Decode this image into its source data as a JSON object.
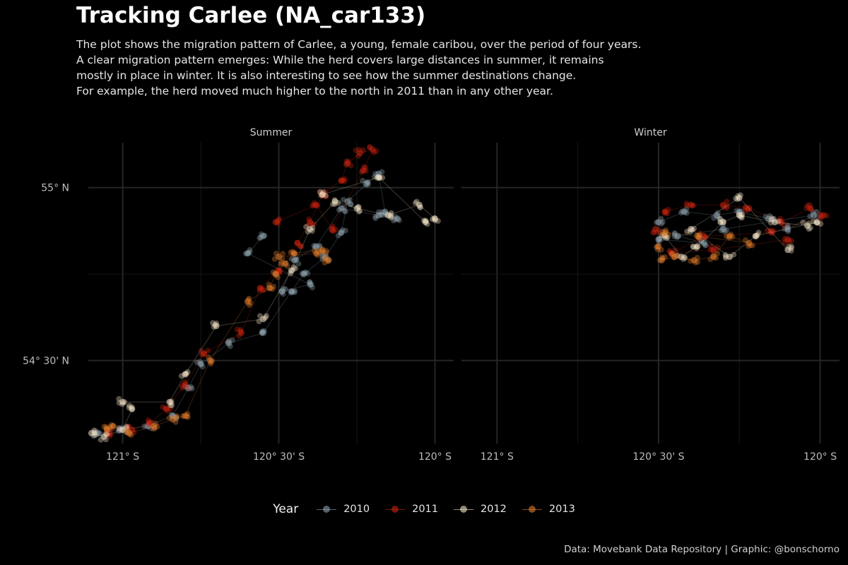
{
  "chart_data": {
    "type": "scatter",
    "title": "Tracking Carlee (NA_car133)",
    "subtitle": [
      "The plot shows the migration pattern of Carlee, a young, female caribou, over the period of four years.",
      "A clear migration pattern emerges: While the herd covers large distances in summer, it remains",
      "mostly in place in winter. It is also interesting to see how the summer destinations change.",
      "For example, the herd moved much higher to the north in 2011 than in any other year."
    ],
    "caption": "Data: Movebank Data Repository | Graphic: @bonschorno",
    "legend": {
      "title": "Year",
      "position": "bottom"
    },
    "x_axis": {
      "range": [
        -121.11,
        -119.94
      ],
      "ticks": [
        -121,
        -120.5,
        -120
      ],
      "tick_labels": [
        "121° S",
        "120° 30' S",
        "120° S"
      ]
    },
    "y_axis": {
      "range": [
        54.26,
        55.13
      ],
      "ticks": [
        54.5,
        55
      ],
      "tick_labels": [
        "54° 30' N",
        "55° N"
      ]
    },
    "grid": true,
    "series": [
      {
        "name": "2010",
        "color": "#8ea2b0"
      },
      {
        "name": "2011",
        "color": "#c8230f"
      },
      {
        "name": "2012",
        "color": "#f5e6c8"
      },
      {
        "name": "2013",
        "color": "#e07b2c"
      }
    ],
    "panels": [
      {
        "label": "Summer",
        "tracks": [
          {
            "year": "2010",
            "points": [
              [
                -121.08,
                54.29
              ],
              [
                -121.01,
                54.3
              ],
              [
                -120.92,
                54.31
              ],
              [
                -120.84,
                54.34
              ],
              [
                -120.79,
                54.42
              ],
              [
                -120.75,
                54.49
              ],
              [
                -120.66,
                54.55
              ],
              [
                -120.55,
                54.58
              ],
              [
                -120.46,
                54.7
              ],
              [
                -120.42,
                54.75
              ],
              [
                -120.35,
                54.8
              ],
              [
                -120.3,
                54.87
              ],
              [
                -120.28,
                54.96
              ],
              [
                -120.22,
                55.01
              ],
              [
                -120.18,
                55.04
              ],
              [
                -120.16,
                54.93
              ],
              [
                -120.12,
                54.91
              ],
              [
                -120.18,
                54.92
              ],
              [
                -120.3,
                54.94
              ],
              [
                -120.38,
                54.83
              ],
              [
                -120.45,
                54.79
              ],
              [
                -120.49,
                54.7
              ],
              [
                -120.4,
                54.72
              ],
              [
                -120.6,
                54.81
              ],
              [
                -120.55,
                54.86
              ]
            ]
          },
          {
            "year": "2011",
            "points": [
              [
                -121.05,
                54.29
              ],
              [
                -120.97,
                54.3
              ],
              [
                -120.91,
                54.32
              ],
              [
                -120.86,
                54.36
              ],
              [
                -120.8,
                54.43
              ],
              [
                -120.74,
                54.52
              ],
              [
                -120.62,
                54.58
              ],
              [
                -120.56,
                54.71
              ],
              [
                -120.5,
                54.76
              ],
              [
                -120.44,
                54.84
              ],
              [
                -120.4,
                54.9
              ],
              [
                -120.36,
                54.98
              ],
              [
                -120.3,
                55.02
              ],
              [
                -120.28,
                55.07
              ],
              [
                -120.24,
                55.1
              ],
              [
                -120.2,
                55.11
              ],
              [
                -120.23,
                55.05
              ],
              [
                -120.33,
                54.88
              ],
              [
                -120.38,
                54.95
              ],
              [
                -120.51,
                54.9
              ]
            ]
          },
          {
            "year": "2012",
            "points": [
              [
                -121.1,
                54.29
              ],
              [
                -121.06,
                54.28
              ],
              [
                -121.0,
                54.3
              ],
              [
                -120.97,
                54.36
              ],
              [
                -121.0,
                54.38
              ],
              [
                -120.85,
                54.38
              ],
              [
                -120.8,
                54.46
              ],
              [
                -120.7,
                54.6
              ],
              [
                -120.55,
                54.62
              ],
              [
                -120.46,
                54.76
              ],
              [
                -120.4,
                54.88
              ],
              [
                -120.32,
                54.96
              ],
              [
                -120.25,
                54.94
              ],
              [
                -120.15,
                54.92
              ],
              [
                -120.05,
                54.95
              ],
              [
                -120.0,
                54.91
              ],
              [
                -120.03,
                54.9
              ],
              [
                -120.18,
                55.03
              ],
              [
                -120.36,
                54.98
              ]
            ]
          },
          {
            "year": "2013",
            "points": [
              [
                -121.05,
                54.3
              ],
              [
                -121.03,
                54.31
              ],
              [
                -120.98,
                54.29
              ],
              [
                -120.9,
                54.31
              ],
              [
                -120.84,
                54.33
              ],
              [
                -120.8,
                54.34
              ],
              [
                -120.72,
                54.5
              ],
              [
                -120.6,
                54.67
              ],
              [
                -120.53,
                54.71
              ],
              [
                -120.51,
                54.75
              ],
              [
                -120.48,
                54.78
              ],
              [
                -120.45,
                54.81
              ],
              [
                -120.36,
                54.82
              ],
              [
                -120.34,
                54.79
              ],
              [
                -120.38,
                54.81
              ],
              [
                -120.5,
                54.8
              ]
            ]
          }
        ]
      },
      {
        "label": "Winter",
        "tracks": [
          {
            "year": "2010",
            "points": [
              [
                -120.5,
                54.9
              ],
              [
                -120.42,
                54.93
              ],
              [
                -120.32,
                54.92
              ],
              [
                -120.25,
                54.93
              ],
              [
                -120.16,
                54.91
              ],
              [
                -120.1,
                54.88
              ],
              [
                -120.02,
                54.92
              ],
              [
                -120.3,
                54.88
              ],
              [
                -120.44,
                54.86
              ],
              [
                -120.36,
                54.84
              ],
              [
                -120.5,
                54.85
              ]
            ]
          },
          {
            "year": "2011",
            "points": [
              [
                -120.51,
                54.88
              ],
              [
                -120.48,
                54.93
              ],
              [
                -120.4,
                54.95
              ],
              [
                -120.3,
                54.95
              ],
              [
                -120.22,
                54.94
              ],
              [
                -120.12,
                54.9
              ],
              [
                -120.03,
                54.94
              ],
              [
                -119.99,
                54.92
              ],
              [
                -120.15,
                54.87
              ],
              [
                -120.36,
                54.86
              ],
              [
                -120.46,
                54.81
              ],
              [
                -120.33,
                54.82
              ],
              [
                -120.1,
                54.85
              ]
            ]
          },
          {
            "year": "2012",
            "points": [
              [
                -120.48,
                54.86
              ],
              [
                -120.43,
                54.8
              ],
              [
                -120.38,
                54.83
              ],
              [
                -120.3,
                54.9
              ],
              [
                -120.25,
                54.92
              ],
              [
                -120.14,
                54.9
              ],
              [
                -120.04,
                54.89
              ],
              [
                -120.01,
                54.9
              ],
              [
                -120.2,
                54.86
              ],
              [
                -120.28,
                54.8
              ],
              [
                -120.4,
                54.88
              ],
              [
                -120.25,
                54.97
              ],
              [
                -120.1,
                54.82
              ]
            ]
          },
          {
            "year": "2013",
            "points": [
              [
                -120.5,
                54.83
              ],
              [
                -120.49,
                54.79
              ],
              [
                -120.45,
                54.8
              ],
              [
                -120.39,
                54.79
              ],
              [
                -120.33,
                54.8
              ],
              [
                -120.28,
                54.86
              ],
              [
                -120.22,
                54.84
              ],
              [
                -120.38,
                54.86
              ],
              [
                -120.48,
                54.87
              ]
            ]
          }
        ]
      }
    ]
  }
}
